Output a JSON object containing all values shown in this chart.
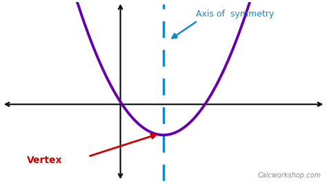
{
  "background_color": "#ffffff",
  "parabola_color": "#6600aa",
  "parabola_vertex_x": 0.0,
  "parabola_vertex_y": -0.6,
  "parabola_a": 0.45,
  "x_range": [
    -4.5,
    4.5
  ],
  "y_range": [
    -1.5,
    2.0
  ],
  "axis_line_color": "#000000",
  "axis_symmetry_x": 0.0,
  "axis_symmetry_color": "#1088cc",
  "axis_symmetry_label": "Axis of  symmetry",
  "axis_symmetry_label_color": "#1088cc",
  "vertex_label": "Vertex",
  "vertex_label_color": "#cc0000",
  "watermark": "Calcworkshop.com",
  "watermark_color": "#888888",
  "parabola_lw": 2.8,
  "axis_lw": 1.5,
  "yaxis_x": -1.2
}
